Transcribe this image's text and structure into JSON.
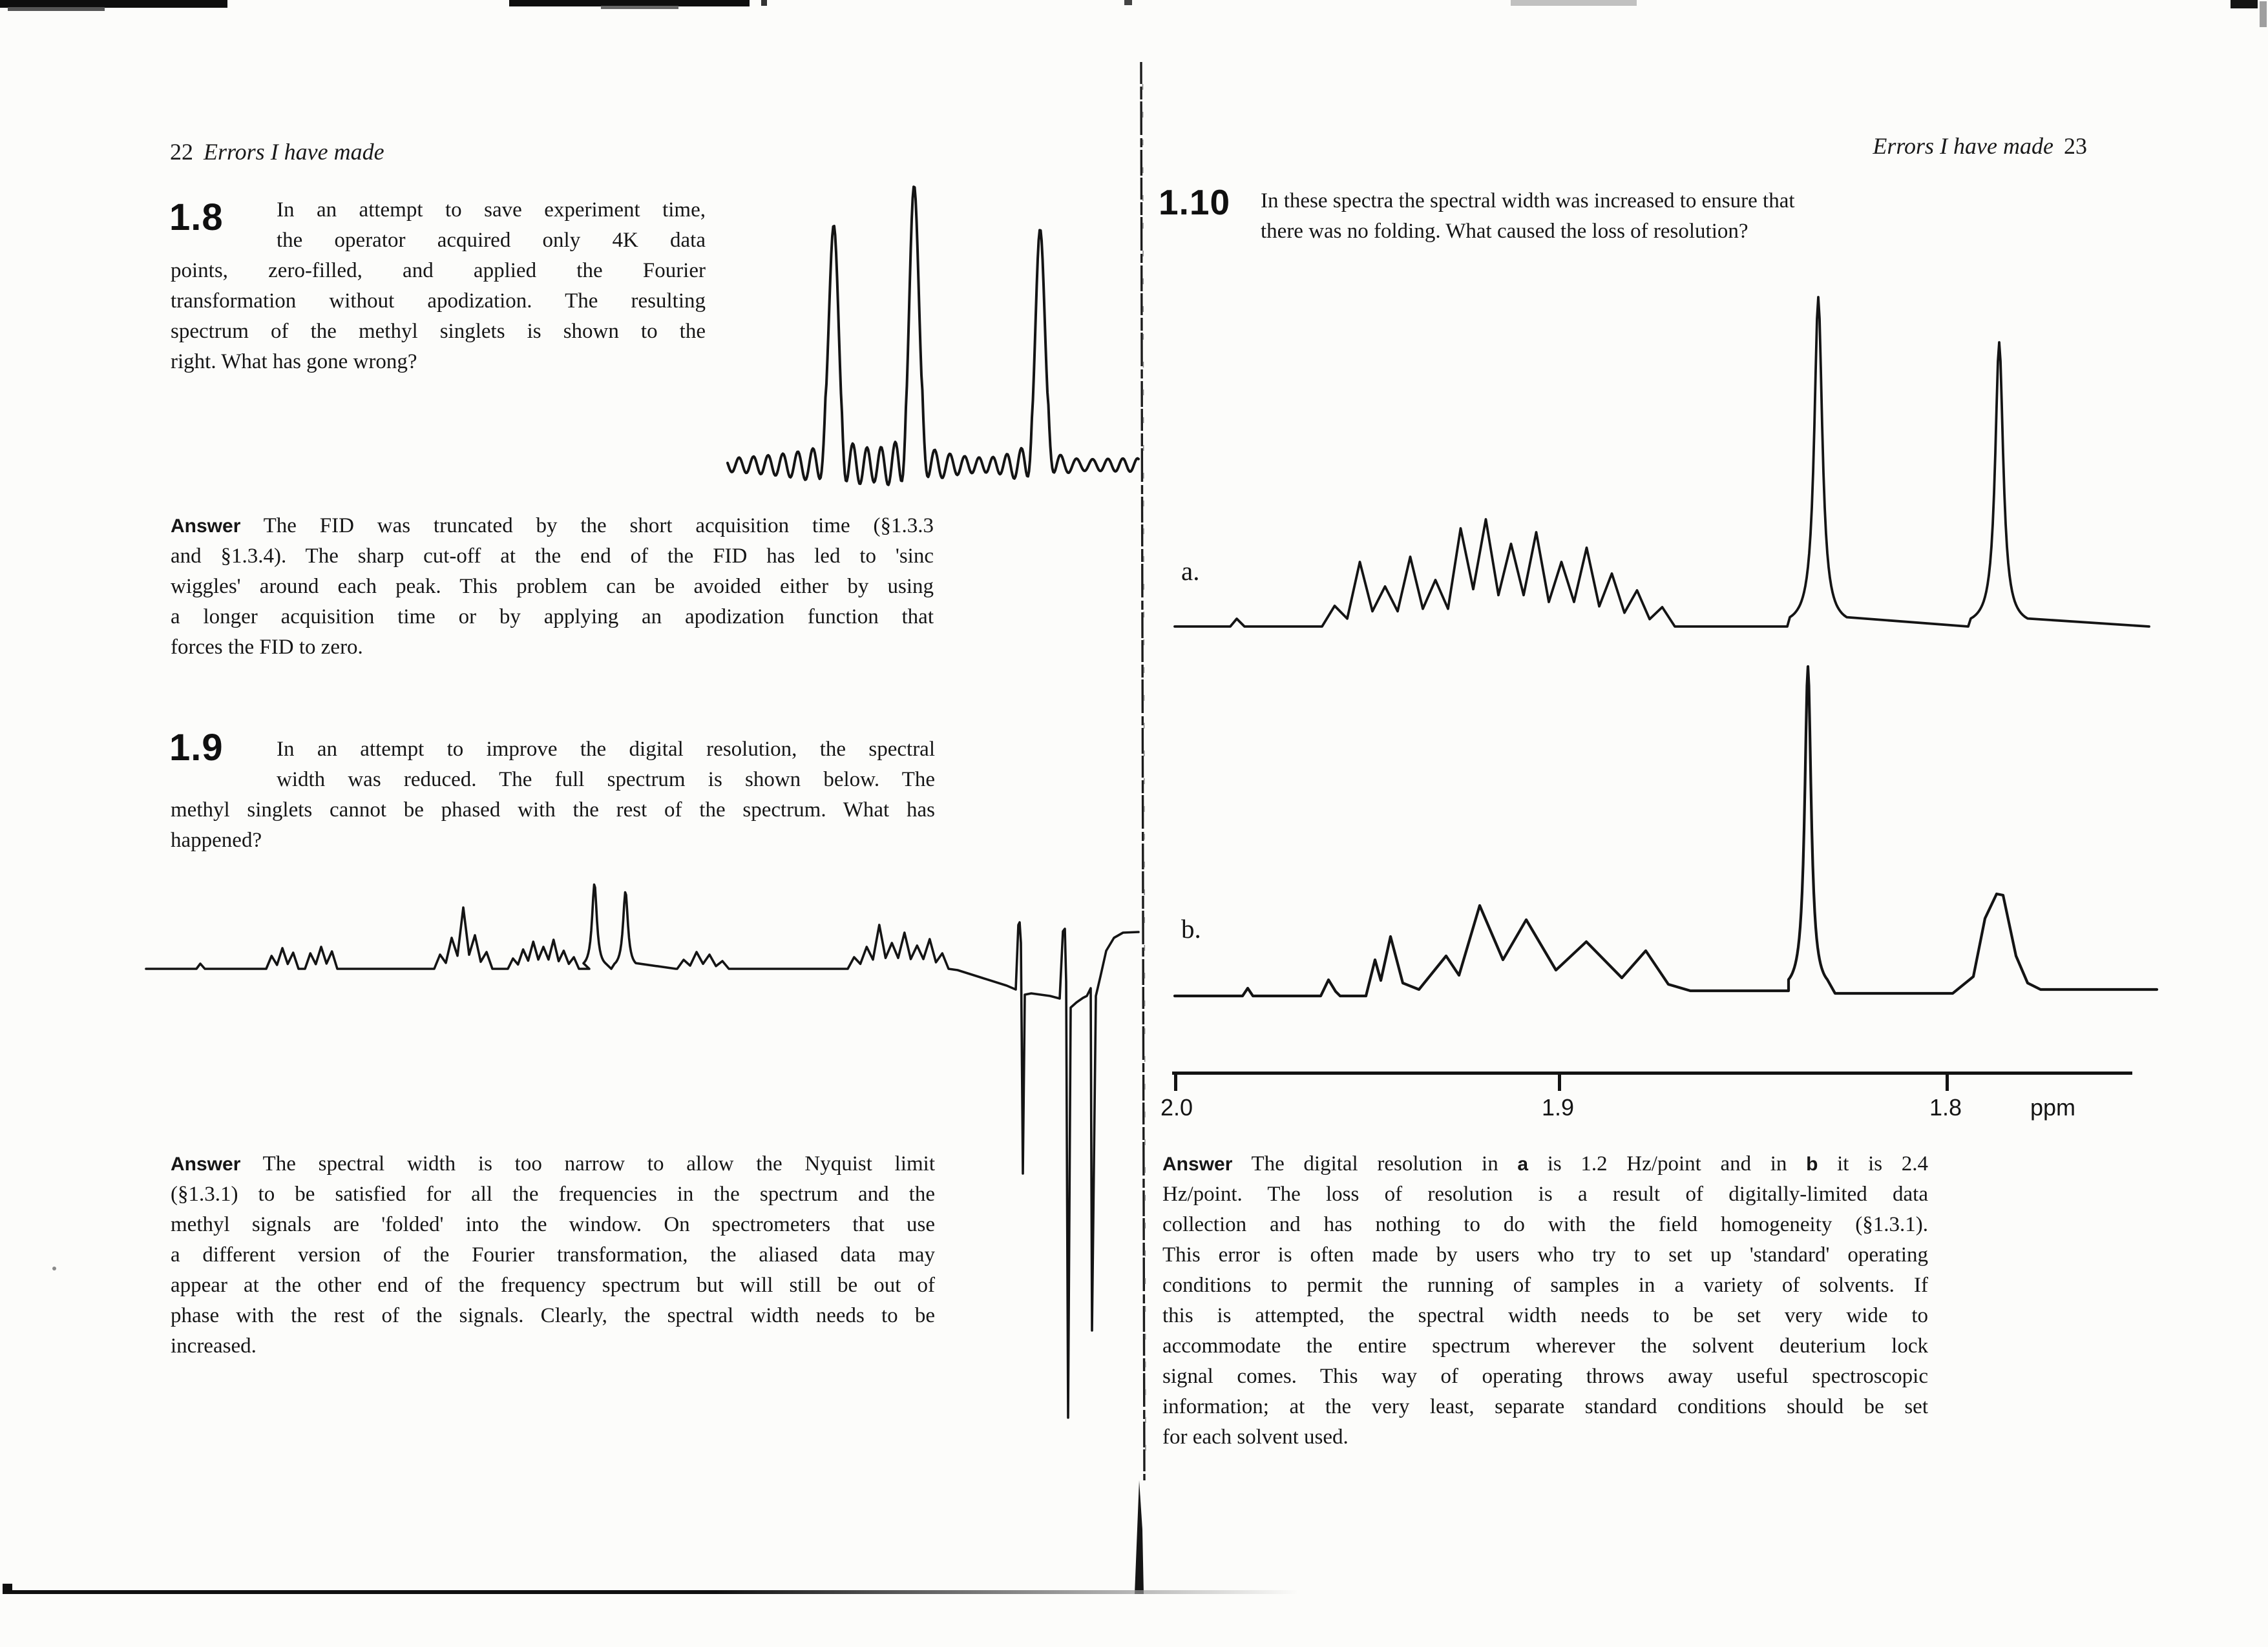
{
  "page_left": {
    "header": {
      "page_number": "22",
      "title": "Errors I have made"
    },
    "q18": {
      "number": "1.8",
      "lines_indent": [
        "In an attempt to save experiment time,",
        "the operator acquired only 4K data"
      ],
      "lines_full": [
        "points, zero-filled, and applied the Fourier",
        "transformation without apodization. The resulting",
        "spectrum of the methyl singlets is shown to the",
        "right. What has gone wrong?"
      ]
    },
    "a18": {
      "lines": [
        "**Answer**  The FID was truncated by the short acquisition time (§1.3.3",
        "and §1.3.4). The sharp cut-off at the end of the FID has led to 'sinc",
        "wiggles' around each peak. This problem can be avoided either by using",
        "a longer acquisition time or by applying an apodization function that",
        "forces the FID to zero."
      ]
    },
    "q19": {
      "number": "1.9",
      "lines_indent": [
        "In an attempt to improve the digital resolution, the spectral",
        "width was reduced. The full spectrum is shown below. The"
      ],
      "lines_full": [
        "methyl singlets cannot be phased with the rest of the spectrum. What has",
        "happened?"
      ]
    },
    "a19": {
      "lines": [
        "**Answer**  The spectral width is too narrow to allow the Nyquist limit",
        "(§1.3.1) to be satisfied for all the frequencies in the spectrum and the",
        "methyl signals are 'folded' into the window.  On spectrometers that use",
        "a different version of the Fourier transformation, the aliased data may",
        "appear at the other end of the frequency spectrum but will still be out of",
        "phase with the rest of the signals. Clearly, the spectral width needs to be",
        "increased."
      ]
    }
  },
  "page_right": {
    "header": {
      "title": "Errors I have made",
      "page_number": "23"
    },
    "q110": {
      "number": "1.10",
      "lines": [
        "In these spectra the spectral width was increased to ensure that",
        "there was no folding. What caused the loss of resolution?"
      ]
    },
    "spectra": {
      "label_a": "a.",
      "label_b": "b.",
      "axis_ticks": [
        "2.0",
        "1.9",
        "1.8"
      ],
      "axis_unit": "ppm"
    },
    "a110": {
      "lines": [
        "**Answer**  The digital resolution in **a** is 1.2 Hz/point and in **b** it is 2.4",
        "Hz/point. The loss of resolution is a result of digitally-limited data",
        "collection and has nothing to do with the field homogeneity (§1.3.1).",
        "This error is often made by users who try to set up 'standard' operating",
        "conditions to permit the running of samples in a variety of solvents. If",
        "this is attempted, the spectral width needs to be set very wide to",
        "accommodate the entire spectrum wherever the solvent deuterium lock",
        "signal comes. This way of operating throws away useful spectroscopic",
        "information; at the very least, separate standard conditions should be set",
        "for each solvent used."
      ]
    }
  }
}
